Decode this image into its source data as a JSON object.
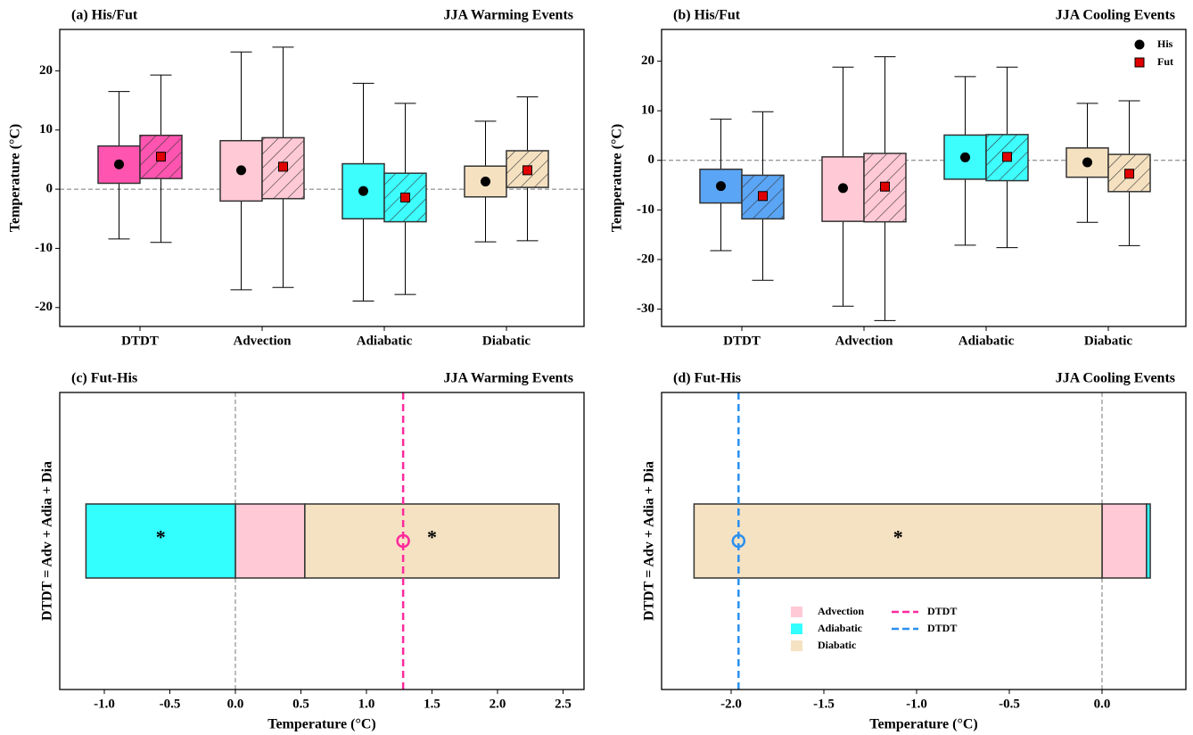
{
  "chart_data": [
    {
      "type": "box",
      "title": "(a) His/Fut",
      "subtitle": "JJA Warming Events",
      "y_label": "Temperature (°C)",
      "categories": [
        "DTDT",
        "Advection",
        "Adiabatic",
        "Diabatic"
      ],
      "colors": [
        "#ff55b0",
        "#ffc9d5",
        "#3dfdfd",
        "#f5e1c0"
      ],
      "ylim": [
        -23.2,
        27
      ],
      "yticks": [
        -20,
        -10,
        0,
        10,
        20
      ],
      "zero_line": true,
      "series": [
        {
          "marker": "circle",
          "marker_color": "#000000",
          "hatch": false,
          "whisker_low": [
            -8.4,
            -17,
            -18.9,
            -8.9
          ],
          "q1": [
            1.0,
            -2.0,
            -5.0,
            -1.3
          ],
          "q3": [
            7.3,
            8.2,
            4.3,
            3.9
          ],
          "whisker_high": [
            16.5,
            23.2,
            17.9,
            11.5
          ],
          "mean": [
            4.2,
            3.2,
            -0.3,
            1.3
          ]
        },
        {
          "marker": "square",
          "marker_color": "#e00000",
          "hatch": true,
          "whisker_low": [
            -9.0,
            -16.6,
            -17.8,
            -8.7
          ],
          "q1": [
            1.8,
            -1.6,
            -5.5,
            0.3
          ],
          "q3": [
            9.1,
            8.7,
            2.7,
            6.5
          ],
          "whisker_high": [
            19.3,
            24.0,
            14.5,
            15.6
          ],
          "mean": [
            5.5,
            3.8,
            -1.4,
            3.2
          ]
        }
      ]
    },
    {
      "type": "box",
      "title": "(b) His/Fut",
      "subtitle": "JJA Cooling Events",
      "y_label": "Temperature (°C)",
      "categories": [
        "DTDT",
        "Advection",
        "Adiabatic",
        "Diabatic"
      ],
      "colors": [
        "#5aa5f5",
        "#ffc9d5",
        "#3dfdfd",
        "#f5e1c0"
      ],
      "ylim": [
        -33.5,
        26.4
      ],
      "yticks": [
        -30,
        -20,
        -10,
        0,
        10,
        20
      ],
      "zero_line": true,
      "legend": "upper right",
      "series": [
        {
          "name": "His",
          "marker": "circle",
          "marker_color": "#000000",
          "hatch": false,
          "whisker_low": [
            -18.2,
            -29.4,
            -17.1,
            -12.5
          ],
          "q1": [
            -8.6,
            -12.3,
            -3.8,
            -3.4
          ],
          "q3": [
            -1.8,
            0.7,
            5.1,
            2.5
          ],
          "whisker_high": [
            8.3,
            18.8,
            16.9,
            11.5
          ],
          "mean": [
            -5.2,
            -5.6,
            0.6,
            -0.4
          ]
        },
        {
          "name": "Fut",
          "marker": "square",
          "marker_color": "#e00000",
          "hatch": true,
          "whisker_low": [
            -24.2,
            -32.3,
            -17.6,
            -17.2
          ],
          "q1": [
            -11.8,
            -12.4,
            -4.1,
            -6.3
          ],
          "q3": [
            -3.0,
            1.4,
            5.2,
            1.2
          ],
          "whisker_high": [
            9.8,
            20.9,
            18.8,
            12.0
          ],
          "mean": [
            -7.2,
            -5.3,
            0.7,
            -2.7
          ]
        }
      ]
    },
    {
      "type": "stacked_hbar",
      "title": "(c) Fut-His",
      "subtitle": "JJA Warming Events",
      "x_label": "Temperature (°C)",
      "y_label": "DTDT = Adv + Adia + Dia",
      "xlim": [
        -1.34,
        2.66
      ],
      "xticks": [
        {
          "value": -1,
          "label": "-1.0"
        },
        -0.5,
        {
          "value": 0,
          "label": "0.0"
        },
        0.5,
        {
          "value": 1,
          "label": "1.0"
        },
        1.5,
        {
          "value": 2,
          "label": "2.0"
        },
        2.5
      ],
      "zero_line": true,
      "series": [
        {
          "color": "#ffc9d5",
          "value": 0.53
        },
        {
          "color": "#33ffff",
          "value": -1.14,
          "annotation": "*"
        },
        {
          "color": "#f5e2c3",
          "value": 1.94,
          "annotation": "*"
        }
      ],
      "total": {
        "value": 1.28,
        "color": "#ff2a9c"
      }
    },
    {
      "type": "stacked_hbar",
      "title": "(d) Fut-His",
      "subtitle": "JJA Cooling Events",
      "x_label": "Temperature (°C)",
      "y_label": "DTDT = Adv + Adia + Dia",
      "xlim": [
        -2.375,
        0.452
      ],
      "xticks": [
        {
          "value": -2,
          "label": "-2.0"
        },
        -1.5,
        {
          "value": -1,
          "label": "-1.0"
        },
        -0.5,
        {
          "value": 0,
          "label": "0.0"
        }
      ],
      "zero_line": true,
      "legend": "lower center",
      "series": [
        {
          "name": "Advection",
          "color": "#ffc9d5",
          "value": 0.24
        },
        {
          "name": "Adiabatic",
          "color": "#33ffff",
          "value": 0.02
        },
        {
          "name": "Diabatic",
          "color": "#f5e2c3",
          "value": -2.2,
          "annotation": "*"
        }
      ],
      "legend_lines": [
        {
          "name": "DTDT",
          "color": "#ff2a9c"
        }
      ],
      "total": {
        "name": "DTDT",
        "value": -1.96,
        "color": "#2b8ff0"
      }
    }
  ]
}
